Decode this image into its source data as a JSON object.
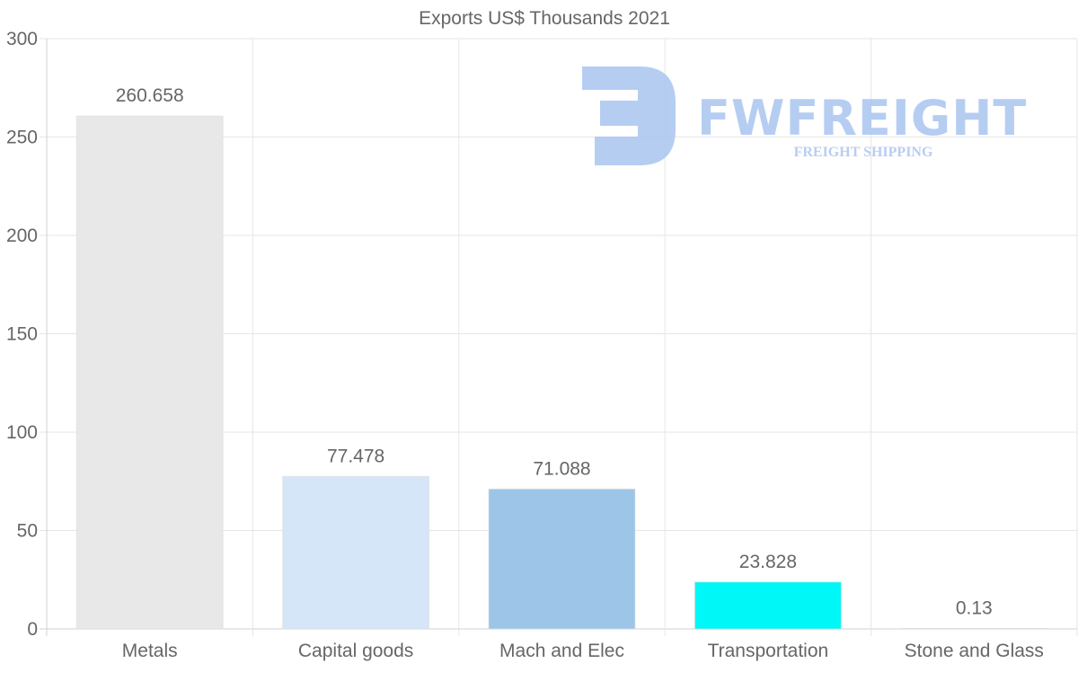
{
  "chart_data": {
    "type": "bar",
    "title": "Exports US$ Thousands 2021",
    "categories": [
      "Metals",
      "Capital goods",
      "Mach and Elec",
      "Transportation",
      "Stone and Glass"
    ],
    "values": [
      260.658,
      77.478,
      71.088,
      23.828,
      0.13
    ],
    "data_labels": [
      "260.658",
      "77.478",
      "71.088",
      "23.828",
      "0.13"
    ],
    "bar_colors": [
      "#e8e8e8",
      "#d6e6f9",
      "#9dc5e8",
      "#00f7f7",
      "#cccccc"
    ],
    "ylim": [
      0,
      300
    ],
    "yticks": [
      0,
      50,
      100,
      150,
      200,
      250,
      300
    ],
    "xlabel": "",
    "ylabel": "",
    "grid": true,
    "legend": "none"
  },
  "watermark": {
    "brand": "FWFREIGHT",
    "tagline": "FREIGHT SHIPPING",
    "color": "#a9c4f0",
    "tagline_color": "#b8cdf2"
  }
}
